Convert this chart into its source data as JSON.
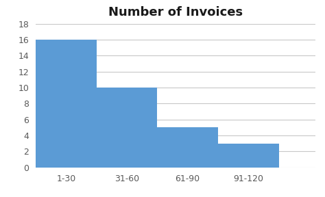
{
  "title": "Number of Invoices",
  "categories": [
    "1-30",
    "31-60",
    "61-90",
    "91-120"
  ],
  "values": [
    16,
    10,
    5,
    3
  ],
  "bar_color": "#5B9BD5",
  "ylim": [
    0,
    18
  ],
  "yticks": [
    0,
    2,
    4,
    6,
    8,
    10,
    12,
    14,
    16,
    18
  ],
  "title_fontsize": 13,
  "tick_fontsize": 9,
  "background_color": "#ffffff",
  "grid_color": "#c8c8c8"
}
